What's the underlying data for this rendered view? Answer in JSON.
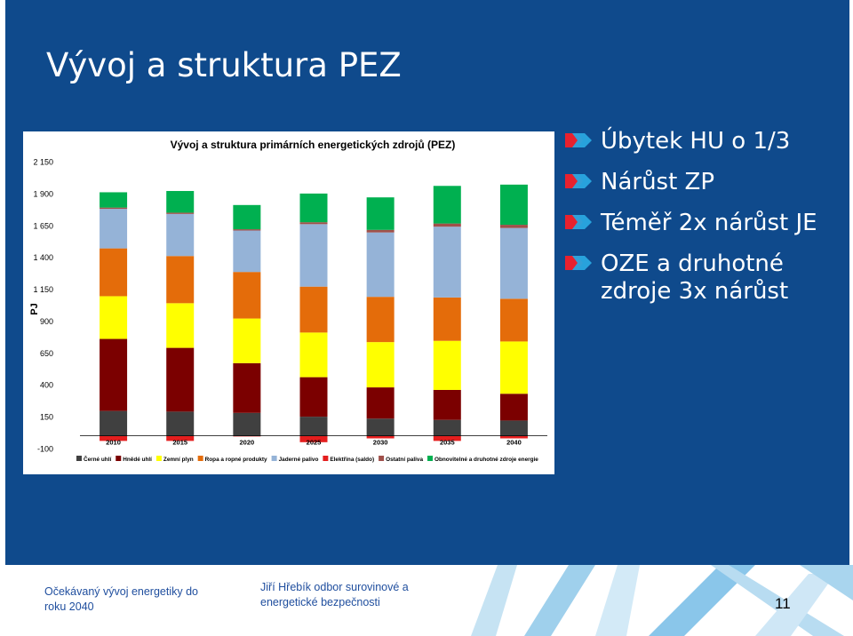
{
  "slide": {
    "title": "Vývoj a struktura PEZ",
    "bullets": [
      "Úbytek HU o 1/3",
      "Nárůst ZP",
      "Téměř 2x nárůst JE",
      "OZE a druhotné zdroje 3x nárůst"
    ],
    "footer": {
      "left": "Očekávaný vývoj energetiky do roku 2040",
      "middle": "Jiří Hřebík odbor surovinové a energetické bezpečnosti",
      "page_number": "11"
    },
    "colors": {
      "background": "#0f4a8c",
      "arrow_red": "#e8212e",
      "arrow_blue": "#2aa7e0"
    }
  },
  "chart_data": {
    "type": "bar",
    "stacked": true,
    "title": "Vývoj  a struktura primárních energetických zdrojů (PEZ)",
    "ylabel": "PJ",
    "xlabel": "",
    "ylim": [
      -100,
      2150
    ],
    "yticks": [
      -100,
      150,
      400,
      650,
      900,
      1150,
      1400,
      1650,
      1900,
      2150
    ],
    "ytick_labels": [
      "-100",
      "150",
      "400",
      "650",
      "900",
      "1 150",
      "1 400",
      "1 650",
      "1 900",
      "2 150"
    ],
    "categories": [
      "2010",
      "2015",
      "2020",
      "2025",
      "2030",
      "2035",
      "2040"
    ],
    "legend_position": "bottom",
    "grid": false,
    "series": [
      {
        "name": "Černé uhlí",
        "color": "#404040",
        "values": [
          195,
          190,
          180,
          150,
          135,
          125,
          120
        ]
      },
      {
        "name": "Hnědé uhlí",
        "color": "#7b0000",
        "values": [
          565,
          500,
          390,
          310,
          245,
          235,
          210
        ]
      },
      {
        "name": "Zemní plyn",
        "color": "#ffff00",
        "values": [
          335,
          350,
          350,
          350,
          355,
          385,
          410
        ]
      },
      {
        "name": "Ropa a ropné produkty",
        "color": "#e46c0a",
        "values": [
          375,
          370,
          365,
          360,
          355,
          340,
          335
        ]
      },
      {
        "name": "Jaderné palivo",
        "color": "#95b3d7",
        "values": [
          310,
          330,
          325,
          490,
          505,
          555,
          555
        ]
      },
      {
        "name": "Elektřina (saldo)",
        "color": "#e41e1e",
        "values": [
          -40,
          -40,
          -5,
          -50,
          -20,
          -40,
          -20
        ]
      },
      {
        "name": "Ostatní paliva",
        "color": "#a0504a",
        "values": [
          10,
          10,
          10,
          15,
          20,
          25,
          25
        ]
      },
      {
        "name": "Obnovitelné a druhotné zdroje energie",
        "color": "#00b050",
        "values": [
          120,
          170,
          190,
          225,
          255,
          295,
          315
        ]
      }
    ]
  }
}
